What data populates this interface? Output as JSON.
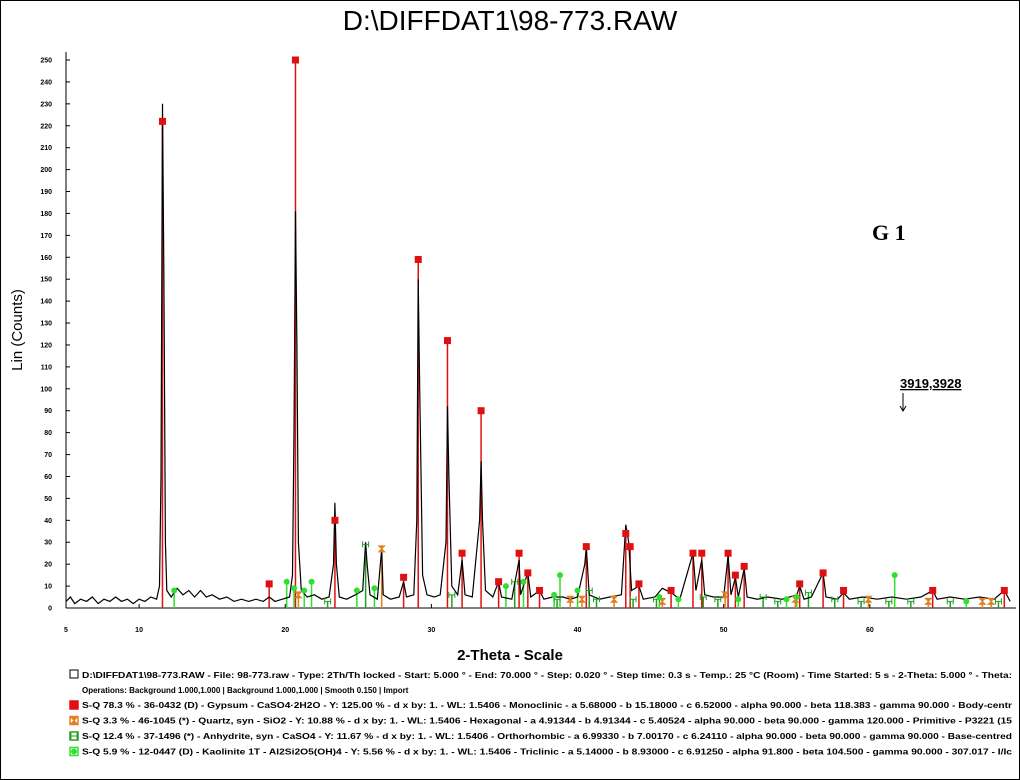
{
  "chart_data": {
    "type": "xrd",
    "title": "D:\\DIFFDAT1\\98-773.RAW",
    "xlabel": "2-Theta - Scale",
    "ylabel": "Lin (Counts)",
    "annotations": [
      "G 1",
      "3919,3928"
    ],
    "xlim": [
      5,
      70
    ],
    "ylim": [
      0,
      255
    ],
    "xticks": [
      5,
      10,
      20,
      30,
      40,
      50,
      60
    ],
    "yticks": [
      0,
      10,
      20,
      30,
      40,
      50,
      60,
      70,
      80,
      90,
      100,
      110,
      120,
      130,
      140,
      150,
      160,
      170,
      180,
      190,
      200,
      210,
      220,
      230,
      240,
      250
    ],
    "scan": {
      "name": "D:\\DIFFDAT1\\98-773.RAW - File: 98-773.raw - Type: 2Th/Th locked - Start: 5.000 ° - End: 70.000 ° - Step: 0.020 ° - Step time: 0.3 s - Temp.: 25 °C (Room) - Time Started: 5 s - 2-Theta: 5.000 ° - Theta:",
      "operations": "Operations: Background 1.000,1.000 | Background 1.000,1.000 | Smooth 0.150 | Import",
      "color": "#000000",
      "x": [
        5,
        5.3,
        5.6,
        6,
        6.4,
        6.8,
        7.2,
        7.6,
        8,
        8.4,
        8.8,
        9.2,
        9.6,
        10,
        10.4,
        10.8,
        11.2,
        11.4,
        11.5,
        11.6,
        11.7,
        11.8,
        11.9,
        12.2,
        12.6,
        13,
        13.4,
        13.8,
        14.2,
        14.6,
        15,
        15.5,
        16,
        16.5,
        17,
        17.5,
        18,
        18.5,
        18.9,
        19.3,
        19.8,
        20.3,
        20.5,
        20.6,
        20.7,
        20.8,
        20.9,
        21.1,
        21.5,
        22,
        22.5,
        23,
        23.3,
        23.4,
        23.5,
        23.7,
        24.2,
        24.8,
        25.3,
        25.5,
        25.6,
        25.8,
        26.3,
        26.6,
        26.7,
        27.2,
        27.8,
        28.1,
        28.3,
        28.8,
        29,
        29.1,
        29.2,
        29.4,
        29.7,
        30.2,
        30.6,
        31,
        31.1,
        31.2,
        31.4,
        31.8,
        32.1,
        32.3,
        32.8,
        33.3,
        33.4,
        33.5,
        33.7,
        34.2,
        34.6,
        34.8,
        35.5,
        36,
        36.1,
        36.6,
        36.8,
        37.4,
        37.7,
        38.3,
        39,
        39.5,
        40,
        40.5,
        40.6,
        40.8,
        41.5,
        42.2,
        43,
        43.3,
        43.5,
        43.7,
        44.2,
        44.5,
        45.3,
        45.8,
        46.4,
        47,
        47.9,
        48.1,
        48.5,
        48.7,
        49.3,
        50,
        50.3,
        50.5,
        50.8,
        51,
        51.4,
        51.6,
        52.3,
        53,
        54,
        55,
        55.2,
        55.5,
        56,
        56.8,
        57,
        57.8,
        58.2,
        58.6,
        59.5,
        60.5,
        61.5,
        62.5,
        63.5,
        64.3,
        64.6,
        65.5,
        66.5,
        67.5,
        68.5,
        69.2,
        69.6
      ],
      "y": [
        3,
        5,
        2,
        4,
        3,
        5,
        2,
        4,
        3,
        5,
        3,
        4,
        2,
        4,
        3,
        5,
        4,
        10,
        60,
        230,
        150,
        30,
        8,
        5,
        9,
        6,
        8,
        5,
        8,
        5,
        6,
        4,
        5,
        3,
        4,
        3,
        4,
        3,
        5,
        3,
        4,
        5,
        15,
        80,
        181,
        120,
        30,
        8,
        5,
        6,
        4,
        5,
        20,
        48,
        20,
        5,
        4,
        6,
        8,
        30,
        20,
        6,
        4,
        27,
        6,
        4,
        5,
        12,
        5,
        6,
        40,
        150,
        100,
        15,
        6,
        5,
        6,
        30,
        92,
        60,
        10,
        6,
        22,
        6,
        5,
        40,
        67,
        40,
        8,
        5,
        12,
        5,
        4,
        22,
        6,
        16,
        5,
        8,
        4,
        5,
        5,
        4,
        5,
        20,
        28,
        6,
        4,
        5,
        6,
        38,
        30,
        8,
        10,
        4,
        5,
        9,
        7,
        4,
        25,
        8,
        22,
        6,
        5,
        5,
        24,
        6,
        14,
        5,
        18,
        5,
        4,
        5,
        4,
        6,
        10,
        4,
        5,
        16,
        5,
        4,
        7,
        4,
        5,
        4,
        5,
        4,
        5,
        8,
        4,
        5,
        4,
        5,
        4,
        8,
        3
      ]
    },
    "phases": [
      {
        "name": "S-Q 78.3 % - 36-0432 (D) - Gypsum - CaSO4·2H2O - Y: 125.00 % - d x by: 1. - WL: 1.5406 - Monoclinic - a 5.68000 - b 15.18000 - c 6.52000 - alpha 90.000 - beta 118.383 - gamma 90.000 - Body-centr",
        "color": "#e01010",
        "marker": "square",
        "x": [
          11.6,
          18.9,
          20.7,
          23.4,
          28.1,
          29.1,
          31.1,
          32.1,
          33.4,
          34.6,
          36.0,
          36.6,
          37.4,
          40.6,
          43.3,
          43.6,
          44.2,
          46.4,
          47.9,
          48.5,
          50.3,
          50.8,
          51.4,
          55.2,
          56.8,
          58.2,
          64.3,
          69.2
        ],
        "values": [
          222,
          11,
          250,
          40,
          14,
          159,
          122,
          25,
          90,
          12,
          25,
          16,
          8,
          28,
          34,
          28,
          11,
          8,
          25,
          25,
          25,
          15,
          19,
          11,
          16,
          8,
          8,
          8
        ]
      },
      {
        "name": "S-Q 3.3 % - 46-1045 (*) - Quartz, syn - SiO2 - Y: 10.88 % - d x by: 1. - WL: 1.5406 - Hexagonal - a 4.91344 - b 4.91344 - c 5.40524 - alpha 90.000 - beta 90.000 - gamma 120.000 - Primitive - P3221 (15",
        "color": "#e08020",
        "marker": "hourglass",
        "x": [
          20.9,
          26.6,
          39.5,
          40.3,
          42.5,
          45.8,
          50.1,
          54.9,
          59.9,
          64.0,
          67.7,
          68.3
        ],
        "values": [
          6,
          27,
          4,
          4,
          4,
          3,
          6,
          4,
          4,
          3,
          3,
          3
        ]
      },
      {
        "name": "S-Q 12.4 % - 37-1496 (*) - Anhydrite, syn - CaSO4 - Y: 11.67 % - d x by: 1. - WL: 1.5406 - Orthorhombic - a 6.99330 - b 7.00170 - c 6.24110 - alpha 90.000 - beta 90.000 - gamma 90.000 - Base-centred",
        "color": "#20a020",
        "marker": "bowtie",
        "x": [
          22.9,
          25.5,
          31.4,
          35.7,
          38.6,
          40.8,
          41.3,
          43.8,
          45.4,
          48.6,
          49.6,
          52.7,
          53.7,
          55.8,
          57.6,
          59.4,
          61.3,
          62.8,
          65.5,
          68.8
        ],
        "values": [
          3,
          29,
          6,
          12,
          4,
          8,
          4,
          4,
          4,
          5,
          4,
          5,
          3,
          7,
          4,
          3,
          3,
          3,
          3,
          3
        ]
      },
      {
        "name": "S-Q 5.9 % - 12-0447 (D) - Kaolinite 1T - Al2Si2O5(OH)4 - Y: 5.56 % - d x by: 1. - WL: 1.5406 - Triclinic - a 5.14000 - b 8.93000 - c 6.91250 - alpha 91.800 - beta 104.500 - gamma 90.000 - 307.017 - I/Ic",
        "color": "#30e030",
        "marker": "circle",
        "x": [
          12.4,
          20.1,
          20.6,
          21.3,
          21.8,
          24.9,
          26.1,
          35.1,
          36.3,
          38.4,
          38.8,
          40.0,
          45.6,
          46.9,
          51.0,
          54.3,
          55.0,
          61.7,
          66.6
        ],
        "values": [
          8,
          12,
          9,
          8,
          12,
          8,
          9,
          10,
          12,
          6,
          15,
          8,
          5,
          4,
          4,
          4,
          5,
          15,
          3
        ]
      }
    ]
  }
}
